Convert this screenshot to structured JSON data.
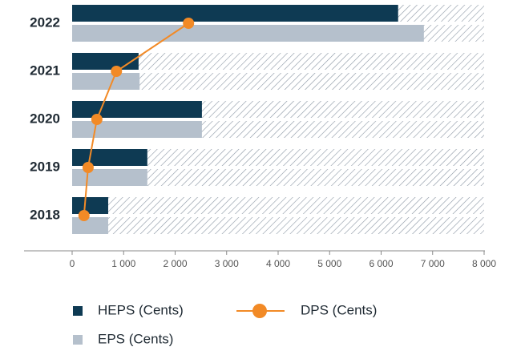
{
  "chart_data": {
    "type": "bar",
    "categories": [
      "2022",
      "2021",
      "2020",
      "2019",
      "2018"
    ],
    "series": [
      {
        "name": "HEPS (Cents)",
        "color": "#0e3a53",
        "values": [
          6330,
          1290,
          2520,
          1460,
          700
        ]
      },
      {
        "name": "EPS (Cents)",
        "color": "#b5c0cc",
        "values": [
          6830,
          1310,
          2520,
          1460,
          700
        ]
      },
      {
        "name": "DPS (Cents)",
        "color": "#f28a26",
        "type": "line",
        "values": [
          2260,
          860,
          480,
          310,
          230
        ]
      }
    ],
    "xlim": [
      0,
      8000
    ],
    "xticks": [
      0,
      {
        "value": 1000,
        "label": "1 000"
      },
      {
        "value": 2000,
        "label": "2 000"
      },
      {
        "value": 3000,
        "label": "3 000"
      },
      {
        "value": 4000,
        "label": "4 000"
      },
      {
        "value": 5000,
        "label": "5 000"
      },
      {
        "value": 6000,
        "label": "6 000"
      },
      {
        "value": 7000,
        "label": "7 000"
      },
      {
        "value": 8000,
        "label": "8 000"
      }
    ],
    "hatched_background": true
  }
}
